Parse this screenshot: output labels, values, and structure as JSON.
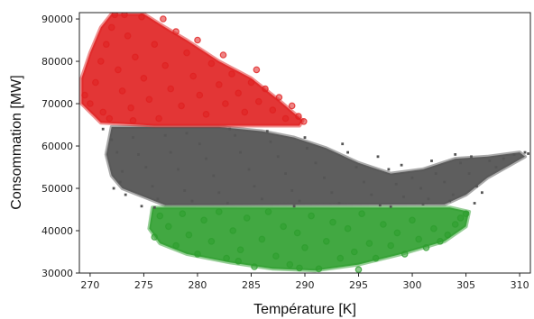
{
  "chart_data": {
    "type": "scatter",
    "title": "",
    "xlabel": "Température [K]",
    "ylabel": "Consommation [MW]",
    "xlim": [
      269,
      311
    ],
    "ylim": [
      30000,
      91500
    ],
    "xticks": [
      270,
      275,
      280,
      285,
      290,
      295,
      300,
      305,
      310
    ],
    "xtick_labels": [
      "270",
      "275",
      "280",
      "285",
      "290",
      "295",
      "300",
      "305",
      "310"
    ],
    "yticks": [
      30000,
      40000,
      50000,
      60000,
      70000,
      80000,
      90000
    ],
    "ytick_labels": [
      "30000",
      "40000",
      "50000",
      "60000",
      "70000",
      "80000",
      "90000"
    ],
    "grid": false,
    "legend": false,
    "series": [
      {
        "color": "#555555",
        "marker": "small-square",
        "points": [
          [
            271.2,
            64000
          ],
          [
            272.0,
            61500
          ],
          [
            272.5,
            58500
          ],
          [
            273.0,
            54000
          ],
          [
            272.8,
            51500
          ],
          [
            273.3,
            48500
          ],
          [
            274.0,
            62000
          ],
          [
            274.5,
            58000
          ],
          [
            275.2,
            55000
          ],
          [
            275.8,
            50500
          ],
          [
            276.3,
            47500
          ],
          [
            277.0,
            62500
          ],
          [
            277.5,
            58500
          ],
          [
            278.2,
            54500
          ],
          [
            278.8,
            49500
          ],
          [
            279.5,
            47000
          ],
          [
            280.2,
            60500
          ],
          [
            280.8,
            57000
          ],
          [
            281.5,
            53000
          ],
          [
            282.0,
            49000
          ],
          [
            282.8,
            46500
          ],
          [
            283.5,
            62500
          ],
          [
            284.0,
            58500
          ],
          [
            284.8,
            54500
          ],
          [
            285.3,
            50500
          ],
          [
            286.0,
            47500
          ],
          [
            286.8,
            61000
          ],
          [
            287.5,
            57500
          ],
          [
            288.2,
            53500
          ],
          [
            288.8,
            49500
          ],
          [
            289.5,
            47000
          ],
          [
            290.2,
            59500
          ],
          [
            291.0,
            56000
          ],
          [
            291.8,
            52500
          ],
          [
            292.5,
            49000
          ],
          [
            293.2,
            46500
          ],
          [
            294.0,
            58500
          ],
          [
            294.8,
            55000
          ],
          [
            295.5,
            51500
          ],
          [
            296.2,
            48500
          ],
          [
            297.0,
            46000
          ],
          [
            297.8,
            54500
          ],
          [
            298.5,
            51000
          ],
          [
            299.2,
            48000
          ],
          [
            300.0,
            52500
          ],
          [
            300.8,
            50000
          ],
          [
            301.5,
            47500
          ],
          [
            302.2,
            53500
          ],
          [
            303.0,
            51500
          ],
          [
            303.8,
            48500
          ],
          [
            304.5,
            56000
          ],
          [
            305.3,
            53500
          ],
          [
            306.0,
            50500
          ],
          [
            306.5,
            49000
          ],
          [
            307.2,
            56500
          ],
          [
            307.8,
            55000
          ],
          [
            308.5,
            57000
          ],
          [
            309.5,
            58000
          ],
          [
            310.5,
            58500
          ],
          [
            310.8,
            58200
          ],
          [
            279.0,
            63000
          ],
          [
            283.0,
            64000
          ],
          [
            286.5,
            63500
          ],
          [
            290.0,
            62000
          ],
          [
            293.5,
            60500
          ],
          [
            296.8,
            57500
          ],
          [
            299.0,
            55500
          ],
          [
            301.8,
            56500
          ],
          [
            304.0,
            58000
          ],
          [
            305.5,
            57500
          ],
          [
            276.0,
            45500
          ],
          [
            289.0,
            45800
          ],
          [
            298.0,
            45700
          ],
          [
            272.2,
            50000
          ],
          [
            274.8,
            45800
          ],
          [
            301.0,
            46300
          ],
          [
            303.5,
            47000
          ],
          [
            305.8,
            46500
          ]
        ]
      },
      {
        "color": "#e02020",
        "marker": "circle",
        "points": [
          [
            269.5,
            72000
          ],
          [
            270.0,
            70000
          ],
          [
            270.5,
            75000
          ],
          [
            271.0,
            80000
          ],
          [
            271.2,
            68000
          ],
          [
            271.5,
            84000
          ],
          [
            272.0,
            88000
          ],
          [
            272.3,
            91000
          ],
          [
            272.6,
            78000
          ],
          [
            273.0,
            73000
          ],
          [
            273.5,
            86000
          ],
          [
            273.8,
            69000
          ],
          [
            274.2,
            81000
          ],
          [
            274.8,
            90500
          ],
          [
            275.0,
            76000
          ],
          [
            275.5,
            71000
          ],
          [
            276.0,
            84000
          ],
          [
            276.4,
            66500
          ],
          [
            277.0,
            79000
          ],
          [
            277.5,
            73500
          ],
          [
            278.0,
            87000
          ],
          [
            278.5,
            69500
          ],
          [
            279.0,
            82000
          ],
          [
            279.6,
            76500
          ],
          [
            280.2,
            72000
          ],
          [
            280.8,
            67500
          ],
          [
            281.3,
            79500
          ],
          [
            282.0,
            74500
          ],
          [
            282.6,
            70000
          ],
          [
            283.2,
            77000
          ],
          [
            283.8,
            72500
          ],
          [
            284.4,
            68000
          ],
          [
            285.0,
            75000
          ],
          [
            285.7,
            70500
          ],
          [
            286.3,
            73500
          ],
          [
            287.0,
            68500
          ],
          [
            287.6,
            71500
          ],
          [
            288.2,
            66500
          ],
          [
            288.8,
            69500
          ],
          [
            289.4,
            67000
          ],
          [
            289.9,
            65800
          ],
          [
            274.0,
            66000
          ],
          [
            276.8,
            90000
          ],
          [
            273.2,
            91000
          ],
          [
            271.8,
            66500
          ],
          [
            280.0,
            85000
          ],
          [
            282.4,
            81500
          ],
          [
            285.5,
            78000
          ]
        ]
      },
      {
        "color": "#2e9e2e",
        "marker": "circle",
        "points": [
          [
            276.0,
            38500
          ],
          [
            276.5,
            43500
          ],
          [
            277.3,
            41000
          ],
          [
            278.0,
            36500
          ],
          [
            278.6,
            44000
          ],
          [
            279.2,
            39000
          ],
          [
            280.0,
            34500
          ],
          [
            280.6,
            42500
          ],
          [
            281.3,
            37500
          ],
          [
            282.0,
            44500
          ],
          [
            282.7,
            33500
          ],
          [
            283.3,
            40000
          ],
          [
            284.0,
            35500
          ],
          [
            284.6,
            43000
          ],
          [
            285.3,
            31500
          ],
          [
            286.0,
            38000
          ],
          [
            286.6,
            44500
          ],
          [
            287.3,
            34000
          ],
          [
            288.0,
            41000
          ],
          [
            288.6,
            32000
          ],
          [
            289.3,
            39500
          ],
          [
            290.0,
            36000
          ],
          [
            290.6,
            43500
          ],
          [
            291.3,
            31000
          ],
          [
            292.0,
            37500
          ],
          [
            292.6,
            42000
          ],
          [
            293.3,
            33500
          ],
          [
            294.0,
            40500
          ],
          [
            294.6,
            35000
          ],
          [
            295.3,
            44000
          ],
          [
            296.0,
            37000
          ],
          [
            296.6,
            33500
          ],
          [
            297.3,
            41500
          ],
          [
            298.0,
            36500
          ],
          [
            298.6,
            39500
          ],
          [
            299.3,
            34500
          ],
          [
            300.0,
            42500
          ],
          [
            300.6,
            38000
          ],
          [
            301.3,
            36000
          ],
          [
            302.0,
            40500
          ],
          [
            302.6,
            37500
          ],
          [
            303.3,
            39000
          ],
          [
            304.0,
            41500
          ],
          [
            304.5,
            43000
          ],
          [
            305.0,
            44000
          ],
          [
            295.0,
            30800
          ],
          [
            289.5,
            31200
          ],
          [
            283.8,
            32800
          ]
        ]
      }
    ],
    "clusters": [
      {
        "color": "#555555",
        "polygon": [
          [
            272.0,
            64500
          ],
          [
            276.0,
            64500
          ],
          [
            282.0,
            64500
          ],
          [
            286.0,
            63500
          ],
          [
            289.0,
            62000
          ],
          [
            292.0,
            59500
          ],
          [
            295.0,
            56000
          ],
          [
            298.0,
            53500
          ],
          [
            301.0,
            54500
          ],
          [
            304.0,
            57000
          ],
          [
            307.0,
            57500
          ],
          [
            310.0,
            58500
          ],
          [
            310.5,
            57500
          ],
          [
            307.0,
            52500
          ],
          [
            305.0,
            48500
          ],
          [
            303.0,
            46200
          ],
          [
            277.0,
            46000
          ],
          [
            275.0,
            48000
          ],
          [
            273.0,
            50000
          ],
          [
            272.0,
            53000
          ],
          [
            271.5,
            58000
          ]
        ]
      },
      {
        "color": "#e02020",
        "polygon": [
          [
            269.2,
            76000
          ],
          [
            270.0,
            82000
          ],
          [
            271.0,
            88000
          ],
          [
            272.0,
            91200
          ],
          [
            275.0,
            91200
          ],
          [
            277.0,
            88000
          ],
          [
            279.0,
            85000
          ],
          [
            282.0,
            80000
          ],
          [
            285.0,
            76000
          ],
          [
            287.5,
            71000
          ],
          [
            289.8,
            66000
          ],
          [
            289.5,
            64800
          ],
          [
            284.0,
            64800
          ],
          [
            276.0,
            64800
          ],
          [
            271.0,
            65500
          ],
          [
            269.2,
            70000
          ]
        ]
      },
      {
        "color": "#2e9e2e",
        "polygon": [
          [
            275.8,
            45500
          ],
          [
            277.5,
            45500
          ],
          [
            290.0,
            45500
          ],
          [
            300.0,
            45500
          ],
          [
            303.5,
            45500
          ],
          [
            305.3,
            44500
          ],
          [
            305.0,
            41000
          ],
          [
            303.0,
            37500
          ],
          [
            299.0,
            34500
          ],
          [
            295.0,
            32000
          ],
          [
            291.0,
            30600
          ],
          [
            287.0,
            31000
          ],
          [
            283.0,
            32500
          ],
          [
            279.0,
            34500
          ],
          [
            276.5,
            37000
          ],
          [
            275.5,
            40500
          ]
        ]
      }
    ]
  }
}
